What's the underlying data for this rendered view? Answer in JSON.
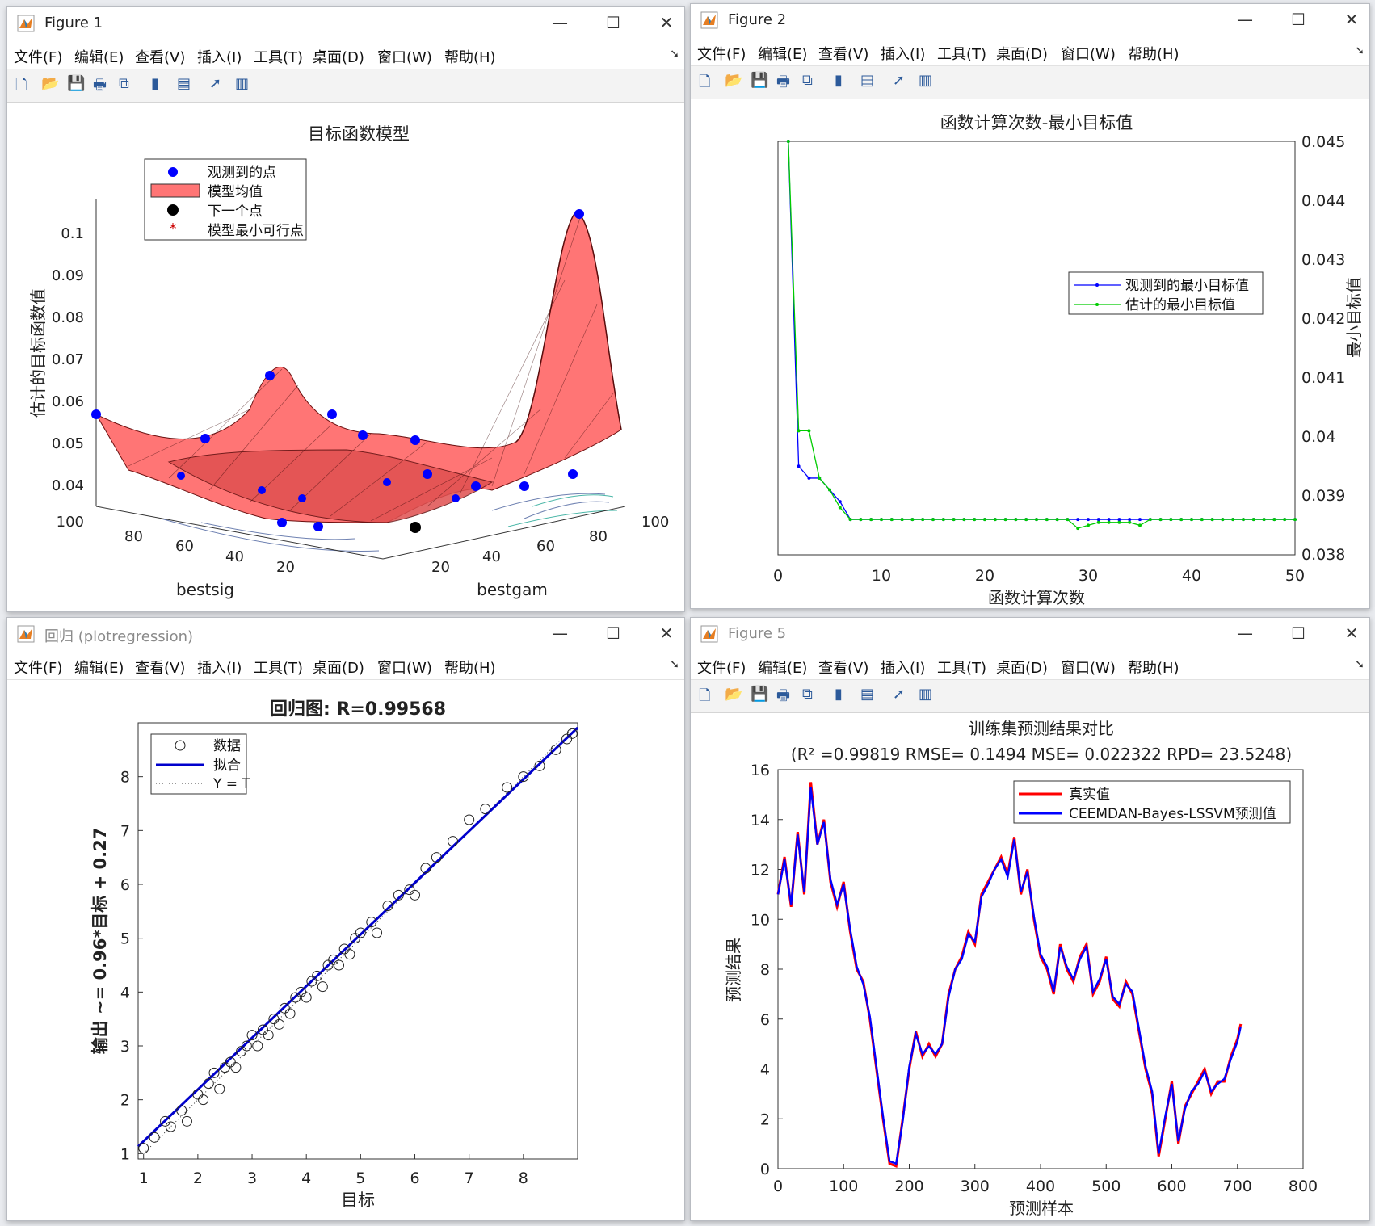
{
  "windows": {
    "fig1": {
      "title": "Figure 1"
    },
    "fig2": {
      "title": "Figure 2"
    },
    "fig3": {
      "title": "回归 (plotregression)"
    },
    "fig4": {
      "title": "Figure 5"
    }
  },
  "menu": [
    "文件(F)",
    "编辑(E)",
    "查看(V)",
    "插入(I)",
    "工具(T)",
    "桌面(D)",
    "窗口(W)",
    "帮助(H)"
  ],
  "window_controls": {
    "minimize": "—",
    "maximize": "☐",
    "close": "✕"
  },
  "toolbar_icons": [
    "new-file-icon",
    "open-folder-icon",
    "save-icon",
    "print-icon",
    "link-plot-icon",
    "colorbar-icon",
    "legend-icon",
    "cursor-icon",
    "property-inspector-icon"
  ],
  "colors": {
    "accent_blue": "#0000ff",
    "surface_red": "#ff6f6f",
    "green": "#00cc00",
    "red": "#ff0000"
  },
  "chart_data": [
    {
      "type": "surface",
      "title": "目标函数模型",
      "xlabel": "bestsig",
      "ylabel": "bestgam",
      "zlabel": "估计的目标函数值",
      "xlim": [
        0,
        100
      ],
      "ylim": [
        0,
        100
      ],
      "zlim": [
        0.035,
        0.105
      ],
      "xticks": [
        "20",
        "40",
        "60",
        "80",
        "100"
      ],
      "yticks": [
        "20",
        "40",
        "60",
        "80",
        "100"
      ],
      "zticks": [
        "0.04",
        "0.05",
        "0.06",
        "0.07",
        "0.08",
        "0.09",
        "0.1"
      ],
      "legend": [
        "观测到的点",
        "模型均值",
        "下一个点",
        "模型最小可行点"
      ],
      "legend_position": "top-left",
      "observed_points": [
        {
          "sig": 100,
          "gam": 2,
          "z": 0.056
        },
        {
          "sig": 30,
          "gam": 75,
          "z": 0.066
        },
        {
          "sig": 2,
          "gam": 100,
          "z": 0.105
        },
        {
          "sig": 55,
          "gam": 30,
          "z": 0.052
        },
        {
          "sig": 10,
          "gam": 40,
          "z": 0.055
        },
        {
          "sig": 60,
          "gam": 60,
          "z": 0.051
        },
        {
          "sig": 70,
          "gam": 90,
          "z": 0.044
        },
        {
          "sig": 45,
          "gam": 10,
          "z": 0.037
        }
      ],
      "next_point": {
        "sig": 5,
        "gam": 30,
        "z": 0.037
      }
    },
    {
      "type": "line",
      "title": "函数计算次数-最小目标值",
      "xlabel": "函数计算次数",
      "ylabel": "最小目标值",
      "xlim": [
        0,
        50
      ],
      "ylim": [
        0.038,
        0.045
      ],
      "xticks": [
        "0",
        "10",
        "20",
        "30",
        "40",
        "50"
      ],
      "yticks": [
        "0.045",
        "0.044",
        "0.043",
        "0.042",
        "0.041",
        "0.04",
        "0.039",
        "0.038"
      ],
      "legend_position": "top-right",
      "x": [
        1,
        2,
        3,
        4,
        5,
        6,
        7,
        8,
        9,
        10,
        11,
        12,
        13,
        14,
        15,
        16,
        17,
        18,
        19,
        20,
        21,
        22,
        23,
        24,
        25,
        26,
        27,
        28,
        29,
        30,
        31,
        32,
        33,
        34,
        35,
        36,
        37,
        38,
        39,
        40,
        41,
        42,
        43,
        44,
        45,
        46,
        47,
        48,
        49,
        50
      ],
      "series": [
        {
          "name": "观测到的最小目标值",
          "color": "#0000ff",
          "values": [
            0.045,
            0.0395,
            0.0393,
            0.0393,
            0.0391,
            0.0389,
            0.0386,
            0.0386,
            0.0386,
            0.0386,
            0.0386,
            0.0386,
            0.0386,
            0.0386,
            0.0386,
            0.0386,
            0.0386,
            0.0386,
            0.0386,
            0.0386,
            0.0386,
            0.0386,
            0.0386,
            0.0386,
            0.0386,
            0.0386,
            0.0386,
            0.0386,
            0.0386,
            0.0386,
            0.0386,
            0.0386,
            0.0386,
            0.0386,
            0.0386,
            0.0386,
            0.0386,
            0.0386,
            0.0386,
            0.0386,
            0.0386,
            0.0386,
            0.0386,
            0.0386,
            0.0386,
            0.0386,
            0.0386,
            0.0386,
            0.0386,
            0.0386
          ]
        },
        {
          "name": "估计的最小目标值",
          "color": "#00cc00",
          "values": [
            0.045,
            0.0401,
            0.0401,
            0.0393,
            0.0391,
            0.0388,
            0.0386,
            0.0386,
            0.0386,
            0.0386,
            0.0386,
            0.0386,
            0.0386,
            0.0386,
            0.0386,
            0.0386,
            0.0386,
            0.0386,
            0.0386,
            0.0386,
            0.0386,
            0.0386,
            0.0386,
            0.0386,
            0.0386,
            0.0386,
            0.0386,
            0.0386,
            0.03845,
            0.0385,
            0.03855,
            0.03855,
            0.03855,
            0.03855,
            0.0385,
            0.0386,
            0.0386,
            0.0386,
            0.0386,
            0.0386,
            0.0386,
            0.0386,
            0.0386,
            0.0386,
            0.0386,
            0.0386,
            0.0386,
            0.0386,
            0.0386,
            0.0386
          ]
        }
      ]
    },
    {
      "type": "scatter",
      "title": "回归图: R=0.99568",
      "xlabel": "目标",
      "ylabel": "输出 ~= 0.96*目标 + 0.27",
      "xlim": [
        0.9,
        9.0
      ],
      "ylim": [
        0.9,
        9.0
      ],
      "xticks": [
        "1",
        "2",
        "3",
        "4",
        "5",
        "6",
        "7",
        "8"
      ],
      "yticks": [
        "1",
        "2",
        "3",
        "4",
        "5",
        "6",
        "7",
        "8"
      ],
      "legend": [
        "数据",
        "拟合",
        "Y = T"
      ],
      "legend_position": "top-left",
      "fit": {
        "slope": 0.96,
        "intercept": 0.27
      },
      "points": [
        [
          1.0,
          1.1
        ],
        [
          1.2,
          1.3
        ],
        [
          1.4,
          1.6
        ],
        [
          1.5,
          1.5
        ],
        [
          1.7,
          1.8
        ],
        [
          1.8,
          1.6
        ],
        [
          2.0,
          2.1
        ],
        [
          2.1,
          2.0
        ],
        [
          2.2,
          2.3
        ],
        [
          2.3,
          2.5
        ],
        [
          2.4,
          2.2
        ],
        [
          2.5,
          2.6
        ],
        [
          2.6,
          2.7
        ],
        [
          2.7,
          2.6
        ],
        [
          2.8,
          2.9
        ],
        [
          2.9,
          3.0
        ],
        [
          3.0,
          3.2
        ],
        [
          3.1,
          3.0
        ],
        [
          3.2,
          3.3
        ],
        [
          3.3,
          3.2
        ],
        [
          3.4,
          3.5
        ],
        [
          3.5,
          3.4
        ],
        [
          3.6,
          3.7
        ],
        [
          3.7,
          3.6
        ],
        [
          3.8,
          3.9
        ],
        [
          3.9,
          4.0
        ],
        [
          4.0,
          3.9
        ],
        [
          4.1,
          4.2
        ],
        [
          4.2,
          4.3
        ],
        [
          4.3,
          4.1
        ],
        [
          4.4,
          4.5
        ],
        [
          4.5,
          4.6
        ],
        [
          4.6,
          4.5
        ],
        [
          4.7,
          4.8
        ],
        [
          4.8,
          4.7
        ],
        [
          4.9,
          5.0
        ],
        [
          5.0,
          5.1
        ],
        [
          5.2,
          5.3
        ],
        [
          5.3,
          5.1
        ],
        [
          5.5,
          5.6
        ],
        [
          5.7,
          5.8
        ],
        [
          5.9,
          5.9
        ],
        [
          6.0,
          5.8
        ],
        [
          6.2,
          6.3
        ],
        [
          6.4,
          6.5
        ],
        [
          6.7,
          6.8
        ],
        [
          7.0,
          7.2
        ],
        [
          7.3,
          7.4
        ],
        [
          7.7,
          7.8
        ],
        [
          8.0,
          8.0
        ],
        [
          8.3,
          8.2
        ],
        [
          8.6,
          8.5
        ],
        [
          8.8,
          8.7
        ],
        [
          8.9,
          8.8
        ]
      ]
    },
    {
      "type": "line",
      "title": "训练集预测结果对比",
      "subtitle": "(R² =0.99819 RMSE= 0.1494 MSE= 0.022322 RPD= 23.5248)",
      "xlabel": "预测样本",
      "ylabel": "预测结果",
      "xlim": [
        0,
        800
      ],
      "ylim": [
        0,
        16
      ],
      "xticks": [
        "0",
        "100",
        "200",
        "300",
        "400",
        "500",
        "600",
        "700",
        "800"
      ],
      "yticks": [
        "0",
        "2",
        "4",
        "6",
        "8",
        "10",
        "12",
        "14",
        "16"
      ],
      "legend_position": "top-right",
      "x": [
        0,
        10,
        20,
        30,
        40,
        50,
        60,
        70,
        80,
        90,
        100,
        110,
        120,
        130,
        140,
        150,
        160,
        170,
        180,
        190,
        200,
        210,
        220,
        230,
        240,
        250,
        260,
        270,
        280,
        290,
        300,
        310,
        320,
        330,
        340,
        350,
        360,
        370,
        380,
        390,
        400,
        410,
        420,
        430,
        440,
        450,
        460,
        470,
        480,
        490,
        500,
        510,
        520,
        530,
        540,
        550,
        560,
        570,
        580,
        590,
        600,
        610,
        620,
        630,
        640,
        650,
        660,
        670,
        680,
        690,
        700,
        705
      ],
      "series": [
        {
          "name": "真实值",
          "color": "#ff0000",
          "values": [
            11,
            12.5,
            10.5,
            13.5,
            11,
            15.5,
            13,
            14,
            11.5,
            10.5,
            11.5,
            9.5,
            8,
            7.5,
            6,
            4,
            2,
            0.2,
            0.1,
            2,
            4,
            5.5,
            4.5,
            5,
            4.5,
            5,
            7,
            8,
            8.5,
            9.5,
            9,
            11,
            11.5,
            12,
            12.5,
            11.8,
            13.3,
            11,
            12,
            10,
            8.5,
            8,
            7,
            9,
            8,
            7.5,
            8.5,
            9,
            7,
            7.5,
            8.5,
            6.8,
            6.5,
            7.5,
            7,
            5.5,
            4,
            3,
            0.5,
            2,
            3.5,
            1,
            2.5,
            3,
            3.5,
            4,
            3,
            3.5,
            3.5,
            4.5,
            5.2,
            5.8
          ]
        },
        {
          "name": "CEEMDAN-Bayes-LSSVM预测值",
          "color": "#0000ff",
          "values": [
            11,
            12.4,
            10.6,
            13.4,
            11.1,
            15.3,
            13,
            13.9,
            11.6,
            10.6,
            11.4,
            9.6,
            8.1,
            7.4,
            6.1,
            4.1,
            2.1,
            0.3,
            0.2,
            1.9,
            4.1,
            5.4,
            4.6,
            4.9,
            4.6,
            5,
            6.9,
            8,
            8.4,
            9.4,
            9.1,
            10.9,
            11.4,
            12,
            12.4,
            11.7,
            13.2,
            11.1,
            11.9,
            10.1,
            8.6,
            8.1,
            7.1,
            8.9,
            8.1,
            7.6,
            8.4,
            8.9,
            7.1,
            7.6,
            8.4,
            6.9,
            6.6,
            7.4,
            7.1,
            5.6,
            4.1,
            3.1,
            0.6,
            2.1,
            3.4,
            1.1,
            2.4,
            3.1,
            3.4,
            3.9,
            3.1,
            3.4,
            3.6,
            4.4,
            5.1,
            5.7
          ]
        }
      ]
    }
  ]
}
